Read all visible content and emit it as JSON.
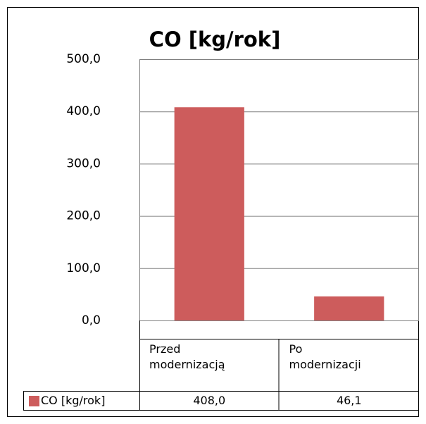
{
  "chart_data": {
    "type": "bar",
    "title": "CO [kg/rok]",
    "categories": [
      "Przed modernizacją",
      "Po modernizacji"
    ],
    "series": [
      {
        "name": "CO [kg/rok]",
        "color": "#cd5c5c",
        "values": [
          408,
          46.1
        ],
        "value_labels": [
          "408,0",
          "46,1"
        ]
      }
    ],
    "ylim": [
      0,
      500
    ],
    "yticks": [
      {
        "value": 0,
        "label": "0,0"
      },
      {
        "value": 100,
        "label": "100,0"
      },
      {
        "value": 200,
        "label": "200,0"
      },
      {
        "value": 300,
        "label": "300,0"
      },
      {
        "value": 400,
        "label": "400,0"
      },
      {
        "value": 500,
        "label": "500,0"
      }
    ],
    "grid": true,
    "data_table": true
  }
}
